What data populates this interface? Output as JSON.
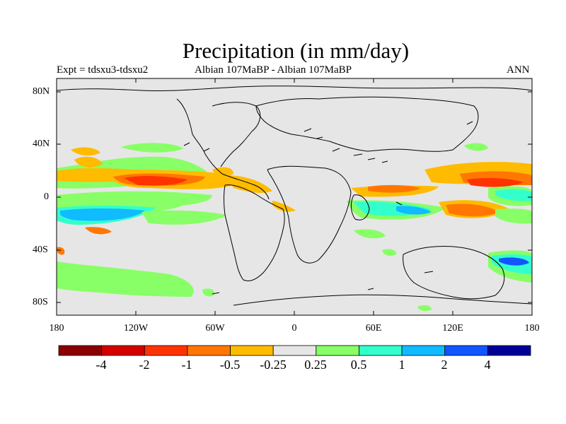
{
  "title": "Precipitation (in mm/day)",
  "subtitle_left": "Expt = tdsxu3-tdsxu2",
  "subtitle_center": "Albian   107MaBP - Albian   107MaBP",
  "subtitle_right": "ANN",
  "y_axis_labels": [
    "80N",
    "40N",
    "0",
    "40S",
    "80S"
  ],
  "x_axis_labels": [
    "180",
    "120W",
    "60W",
    "0",
    "60E",
    "120E",
    "180"
  ],
  "colorbar": {
    "colors": [
      "#8b0000",
      "#d40000",
      "#ff3300",
      "#ff7700",
      "#ffbb00",
      "#e6e6e6",
      "#88ff66",
      "#33ffcc",
      "#11bbff",
      "#1155ff",
      "#000099"
    ],
    "labels": [
      "-4",
      "-2",
      "-1",
      "-0.5",
      "-0.25",
      "0.25",
      "0.5",
      "1",
      "2",
      "4"
    ]
  },
  "map_background": "#e6e6e6"
}
